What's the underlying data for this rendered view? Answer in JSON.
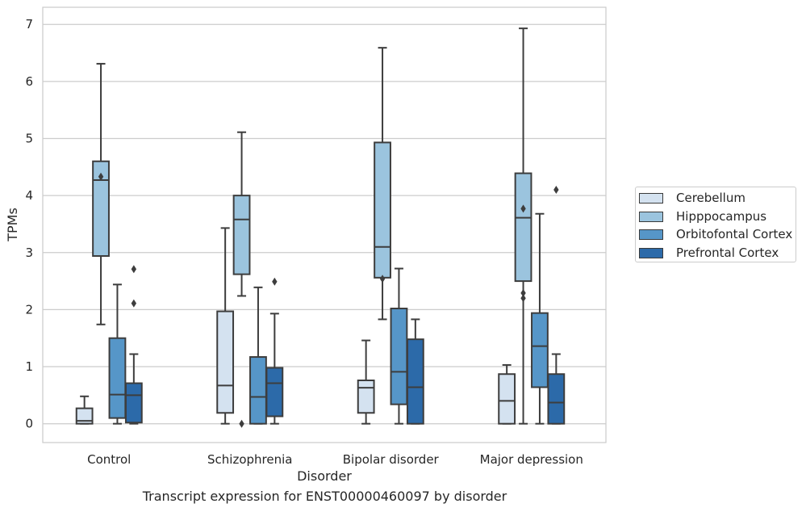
{
  "caption": "Transcript expression for ENST00000460097 by disorder",
  "chart_data": {
    "type": "boxplot",
    "xlabel": "Disorder",
    "ylabel": "TPMs",
    "ylim": [
      -0.33,
      7.3
    ],
    "yticks": [
      0,
      1,
      2,
      3,
      4,
      5,
      6,
      7
    ],
    "grid": "horizontal",
    "legend_position": "right",
    "categories": [
      "Control",
      "Schizophrenia",
      "Bipolar disorder",
      "Major depression"
    ],
    "series": [
      {
        "name": "Cerebellum",
        "color": "#d4e2f0",
        "boxes": [
          {
            "whislo": 0.0,
            "q1": 0.0,
            "med": 0.05,
            "q3": 0.27,
            "whishi": 0.48,
            "fliers": []
          },
          {
            "whislo": 0.0,
            "q1": 0.19,
            "med": 0.67,
            "q3": 1.97,
            "whishi": 3.43,
            "fliers": []
          },
          {
            "whislo": 0.0,
            "q1": 0.19,
            "med": 0.63,
            "q3": 0.76,
            "whishi": 1.46,
            "fliers": []
          },
          {
            "whislo": 0.0,
            "q1": 0.0,
            "med": 0.4,
            "q3": 0.87,
            "whishi": 1.03,
            "fliers": []
          }
        ]
      },
      {
        "name": "Hipppocampus",
        "color": "#9bc4de",
        "boxes": [
          {
            "whislo": 1.74,
            "q1": 2.94,
            "med": 4.27,
            "q3": 4.6,
            "whishi": 6.31,
            "fliers": [
              4.33
            ]
          },
          {
            "whislo": 2.24,
            "q1": 2.62,
            "med": 3.58,
            "q3": 4.0,
            "whishi": 5.11,
            "fliers": [
              0.0
            ]
          },
          {
            "whislo": 1.83,
            "q1": 2.56,
            "med": 3.1,
            "q3": 4.93,
            "whishi": 6.59,
            "fliers": [
              2.54
            ]
          },
          {
            "whislo": 0.0,
            "q1": 2.5,
            "med": 3.61,
            "q3": 4.39,
            "whishi": 6.93,
            "fliers": [
              3.77,
              2.29,
              2.2
            ]
          }
        ]
      },
      {
        "name": "Orbitofontal Cortex",
        "color": "#5696c8",
        "boxes": [
          {
            "whislo": 0.0,
            "q1": 0.1,
            "med": 0.51,
            "q3": 1.5,
            "whishi": 2.44,
            "fliers": []
          },
          {
            "whislo": 0.0,
            "q1": 0.0,
            "med": 0.47,
            "q3": 1.17,
            "whishi": 2.39,
            "fliers": []
          },
          {
            "whislo": 0.0,
            "q1": 0.34,
            "med": 0.91,
            "q3": 2.02,
            "whishi": 2.72,
            "fliers": []
          },
          {
            "whislo": 0.0,
            "q1": 0.64,
            "med": 1.36,
            "q3": 1.94,
            "whishi": 3.68,
            "fliers": []
          }
        ]
      },
      {
        "name": "Prefrontal Cortex",
        "color": "#2c6aa9",
        "boxes": [
          {
            "whislo": 0.0,
            "q1": 0.02,
            "med": 0.5,
            "q3": 0.71,
            "whishi": 1.22,
            "fliers": [
              2.71,
              2.11
            ]
          },
          {
            "whislo": 0.0,
            "q1": 0.13,
            "med": 0.71,
            "q3": 0.98,
            "whishi": 1.93,
            "fliers": [
              2.49
            ]
          },
          {
            "whislo": 0.0,
            "q1": 0.0,
            "med": 0.64,
            "q3": 1.48,
            "whishi": 1.83,
            "fliers": []
          },
          {
            "whislo": 0.0,
            "q1": 0.0,
            "med": 0.37,
            "q3": 0.87,
            "whishi": 1.22,
            "fliers": [
              4.1
            ]
          }
        ]
      }
    ]
  }
}
